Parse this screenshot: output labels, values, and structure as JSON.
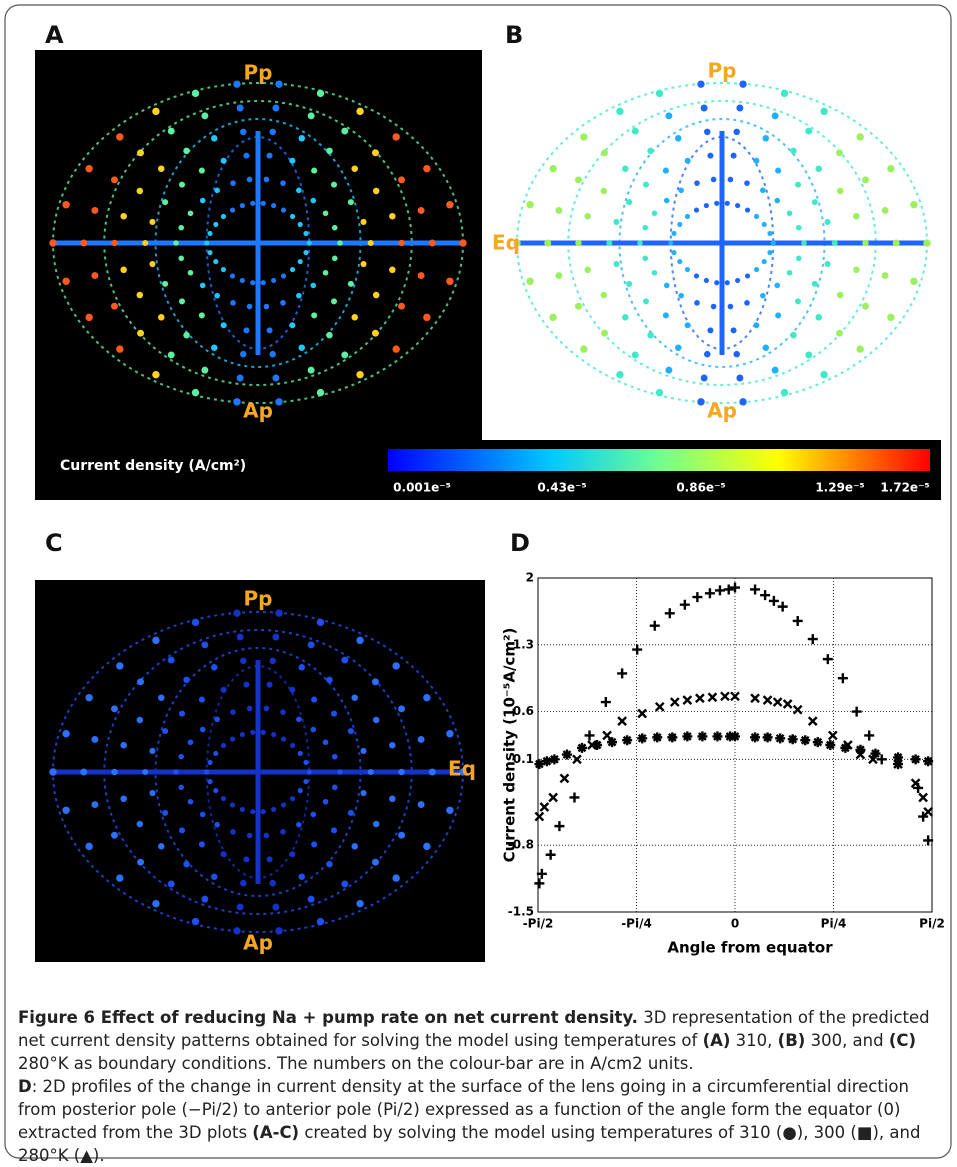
{
  "panels": {
    "A": {
      "letter": "A",
      "pole_top": "Pp",
      "pole_bottom": "Ap"
    },
    "B": {
      "letter": "B",
      "pole_top": "Pp",
      "equator": "Eq",
      "pole_bottom": "Ap"
    },
    "C": {
      "letter": "C",
      "pole_top": "Pp",
      "equator": "Eq",
      "pole_bottom": "Ap"
    },
    "D": {
      "letter": "D"
    }
  },
  "colorbar": {
    "title": "Current density (A/cm²)",
    "labels": [
      "0.001e⁻⁵",
      "0.43e⁻⁵",
      "0.86e⁻⁵",
      "1.29e⁻⁵",
      "1.72e⁻⁵"
    ]
  },
  "chart_data": {
    "type": "scatter",
    "xlabel": "Angle from equator",
    "ylabel": "Current density (10⁻⁵A/cm²)",
    "xlim": [
      -1.5708,
      1.5708
    ],
    "xticks": [
      {
        "value": -1.5708,
        "label": "-Pi/2"
      },
      {
        "value": -0.7854,
        "label": "-Pi/4"
      },
      0,
      {
        "value": 0.7854,
        "label": "Pi/4"
      },
      {
        "value": 1.5708,
        "label": "Pi/2"
      }
    ],
    "ylim": [
      -1.5,
      2
    ],
    "yticks": [
      -1.5,
      -0.8,
      0.1,
      0.6,
      1.3,
      2
    ],
    "grid": true,
    "series": [
      {
        "marker": "plus",
        "color": "#000000",
        "x": [
          -1.56,
          -1.54,
          -1.47,
          -1.4,
          -1.28,
          -1.16,
          -1.03,
          -0.9,
          -0.78,
          -0.64,
          -0.52,
          -0.4,
          -0.3,
          -0.2,
          -0.12,
          -0.05,
          0.0,
          0.16,
          0.24,
          0.31,
          0.38,
          0.5,
          0.62,
          0.74,
          0.86,
          0.97,
          1.07,
          1.17,
          1.3,
          1.46,
          1.5,
          1.54
        ],
        "values": [
          -1.2,
          -1.1,
          -0.9,
          -0.6,
          -0.3,
          0.35,
          0.7,
          1.0,
          1.25,
          1.5,
          1.63,
          1.72,
          1.8,
          1.84,
          1.87,
          1.88,
          1.9,
          1.88,
          1.82,
          1.76,
          1.7,
          1.55,
          1.36,
          1.15,
          0.95,
          0.6,
          0.35,
          0.1,
          0.05,
          -0.2,
          -0.5,
          -0.75
        ]
      },
      {
        "marker": "x",
        "color": "#000000",
        "x": [
          -1.56,
          -1.52,
          -1.45,
          -1.36,
          -1.26,
          -1.14,
          -1.02,
          -0.9,
          -0.74,
          -0.6,
          -0.48,
          -0.38,
          -0.28,
          -0.18,
          -0.08,
          0.0,
          0.16,
          0.26,
          0.34,
          0.42,
          0.5,
          0.62,
          0.78,
          0.9,
          1.0,
          1.1,
          1.3,
          1.44,
          1.5,
          1.54
        ],
        "values": [
          -0.5,
          -0.4,
          -0.3,
          -0.1,
          0.1,
          0.25,
          0.35,
          0.5,
          0.58,
          0.65,
          0.7,
          0.72,
          0.74,
          0.75,
          0.76,
          0.76,
          0.74,
          0.72,
          0.7,
          0.68,
          0.62,
          0.5,
          0.35,
          0.25,
          0.15,
          0.1,
          0.05,
          -0.15,
          -0.3,
          -0.45
        ]
      },
      {
        "marker": "star",
        "color": "#000000",
        "x": [
          -1.56,
          -1.5,
          -1.44,
          -1.34,
          -1.22,
          -1.1,
          -0.98,
          -0.86,
          -0.74,
          -0.62,
          -0.5,
          -0.38,
          -0.26,
          -0.14,
          -0.04,
          0.0,
          0.16,
          0.26,
          0.36,
          0.46,
          0.56,
          0.66,
          0.76,
          0.88,
          1.0,
          1.12,
          1.3,
          1.44,
          1.54
        ],
        "values": [
          0.05,
          0.08,
          0.1,
          0.15,
          0.22,
          0.25,
          0.28,
          0.3,
          0.32,
          0.33,
          0.33,
          0.34,
          0.34,
          0.34,
          0.34,
          0.34,
          0.33,
          0.33,
          0.32,
          0.31,
          0.3,
          0.28,
          0.25,
          0.22,
          0.2,
          0.16,
          0.12,
          0.1,
          0.08
        ]
      }
    ]
  },
  "caption": {
    "runs": [
      "Figure 6 Effect of reducing Na + pump rate on net current density.",
      " 3D representation of the predicted net current density patterns obtained for solving the model using temperatures of ",
      "(A)",
      " 310, ",
      "(B)",
      " 300, and ",
      "(C)",
      " 280°K as boundary conditions. The numbers on the colour-bar are in A/cm2 units.",
      "D",
      ": 2D profiles of the change in current density at the surface of the lens going in a circumferential direction from posterior pole (−Pi/2) to anterior pole (Pi/2) expressed as a function of the angle form the equator (0) extracted from the 3D plots ",
      "(A-C)",
      " created by solving the model using temperatures of 310 (●), 300 (■), and 280°K (▲)."
    ]
  }
}
